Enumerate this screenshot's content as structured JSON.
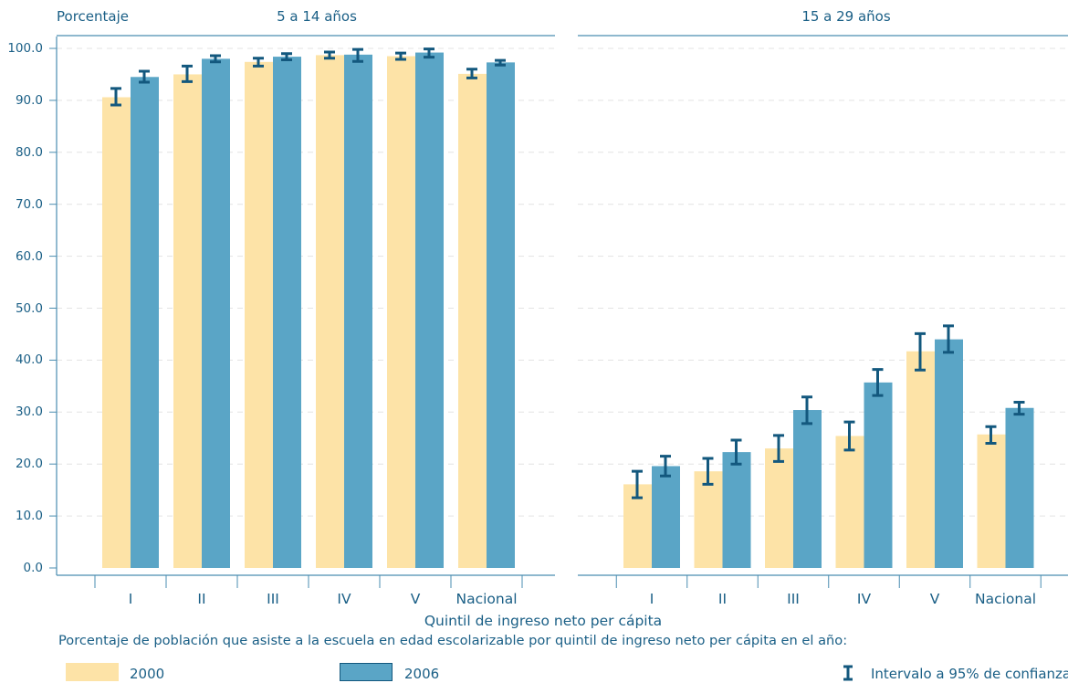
{
  "colors": {
    "series_2000": "#fde3a7",
    "series_2006": "#5aa5c6",
    "error_bar": "#13587e",
    "axis": "#4a8db0",
    "grid": "#e3e3e3",
    "text": "#1a5f86"
  },
  "labels": {
    "ylabel": "Porcentaje",
    "xlabel": "Quintil de ingreso neto per cápita",
    "subtitle": "Porcentaje de población que asiste a la escuela  en edad escolarizable por quintil de ingreso neto per cápita en el año:",
    "legend_2000": "2000",
    "legend_2006": "2006",
    "legend_ci": "Intervalo a 95% de confianza",
    "ci_icon": "error-bar-icon"
  },
  "chart_data": [
    {
      "type": "bar",
      "title": "5 a 14 años",
      "categories": [
        "I",
        "II",
        "III",
        "IV",
        "V",
        "Nacional"
      ],
      "ylim": [
        0,
        100
      ],
      "yticks": [
        "0.0",
        "10.0",
        "20.0",
        "30.0",
        "40.0",
        "50.0",
        "60.0",
        "70.0",
        "80.0",
        "90.0",
        "100.0"
      ],
      "grid": true,
      "legend_position": "bottom",
      "series": [
        {
          "name": "2000",
          "values": [
            90.6,
            95.0,
            97.4,
            98.7,
            98.5,
            95.1
          ],
          "ci_low": [
            89.1,
            93.6,
            96.6,
            98.1,
            97.9,
            94.3
          ],
          "ci_high": [
            92.3,
            96.6,
            98.1,
            99.3,
            99.1,
            96.0
          ]
        },
        {
          "name": "2006",
          "values": [
            94.5,
            98.0,
            98.4,
            98.8,
            99.2,
            97.3
          ],
          "ci_low": [
            93.5,
            97.4,
            97.8,
            97.5,
            98.3,
            96.8
          ],
          "ci_high": [
            95.6,
            98.6,
            99.0,
            99.8,
            99.9,
            97.7
          ]
        }
      ]
    },
    {
      "type": "bar",
      "title": "15 a 29 años",
      "categories": [
        "I",
        "II",
        "III",
        "IV",
        "V",
        "Nacional"
      ],
      "ylim": [
        0,
        100
      ],
      "grid": true,
      "legend_position": "bottom",
      "series": [
        {
          "name": "2000",
          "values": [
            16.1,
            18.6,
            23.0,
            25.4,
            41.7,
            25.7
          ],
          "ci_low": [
            13.5,
            16.1,
            20.5,
            22.7,
            38.1,
            24.0
          ],
          "ci_high": [
            18.6,
            21.1,
            25.5,
            28.1,
            45.1,
            27.2
          ]
        },
        {
          "name": "2006",
          "values": [
            19.6,
            22.3,
            30.4,
            35.7,
            44.0,
            30.8
          ],
          "ci_low": [
            17.7,
            20.0,
            27.8,
            33.2,
            41.5,
            29.6
          ],
          "ci_high": [
            21.5,
            24.6,
            32.9,
            38.2,
            46.6,
            31.9
          ]
        }
      ]
    }
  ]
}
